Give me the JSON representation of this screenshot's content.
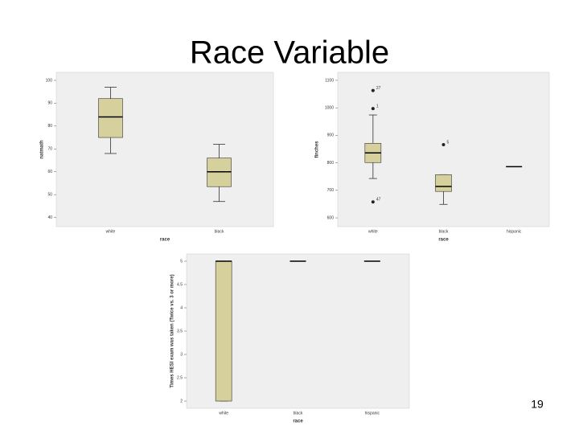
{
  "slide": {
    "title": "Race Variable",
    "page_number": "19"
  },
  "chart_data": [
    {
      "type": "box",
      "y_label": "natmath",
      "x_label": "race",
      "categories": [
        "white",
        "black"
      ],
      "color": "#d5d09c",
      "ylim": [
        36,
        103.5
      ],
      "yticks": [
        100,
        90,
        80,
        70,
        60,
        50,
        40
      ],
      "boxes": [
        {
          "whisker_low": 68,
          "q1": 75,
          "median": 84,
          "q3": 92,
          "whisker_high": 97,
          "outliers": []
        },
        {
          "whisker_low": 47,
          "q1": 53.5,
          "median": 60,
          "q3": 66,
          "whisker_high": 72,
          "outliers": []
        }
      ]
    },
    {
      "type": "box",
      "y_label": "finches",
      "x_label": "race",
      "categories": [
        "white",
        "black",
        "hispanic"
      ],
      "color": "#d5d09c",
      "ylim": [
        568,
        1129
      ],
      "yticks": [
        1100,
        1000,
        900,
        800,
        700,
        600
      ],
      "boxes": [
        {
          "whisker_low": 743,
          "q1": 801,
          "median": 836,
          "q3": 871,
          "whisker_high": 974,
          "outliers": [
            {
              "value": 1063,
              "label": "27"
            },
            {
              "value": 997,
              "label": "1"
            },
            {
              "value": 658,
              "label": "47"
            }
          ]
        },
        {
          "whisker_low": 649,
          "q1": 696,
          "median": 714,
          "q3": 757,
          "whisker_high": 757,
          "outliers": [
            {
              "value": 866,
              "label": "5"
            }
          ]
        },
        {
          "whisker_low": 786,
          "q1": 786,
          "median": 786,
          "q3": 786,
          "whisker_high": 786,
          "outliers": []
        }
      ]
    },
    {
      "type": "box",
      "y_label": "Times HESI exam was taken (Twice vs. 3 or more)",
      "x_label": "race",
      "categories": [
        "white",
        "black",
        "hispanic"
      ],
      "color": "#d5d09c",
      "ylim": [
        1.845,
        5.155
      ],
      "yticks": [
        5,
        4.5,
        4,
        3.5,
        3,
        2.5,
        2
      ],
      "boxes": [
        {
          "whisker_low": 2,
          "q1": 2,
          "median": 5,
          "q3": 5,
          "whisker_high": 5,
          "outliers": []
        },
        {
          "whisker_low": 5,
          "q1": 5,
          "median": 5,
          "q3": 5,
          "whisker_high": 5,
          "outliers": []
        },
        {
          "whisker_low": 5,
          "q1": 5,
          "median": 5,
          "q3": 5,
          "whisker_high": 5,
          "outliers": []
        }
      ]
    }
  ]
}
